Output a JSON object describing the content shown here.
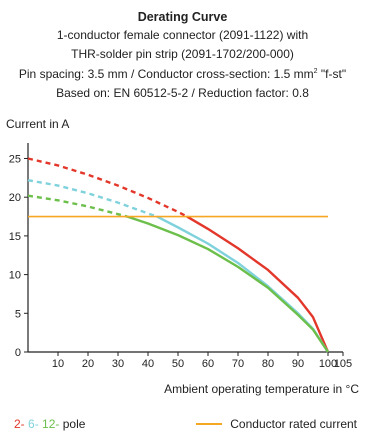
{
  "header": {
    "title": "Derating Curve",
    "line1": "1-conductor female connector (2091-1122) with",
    "line2": "THR-solder pin strip (2091-1702/200-000)",
    "line3_pre": "Pin spacing: 3.5 mm / Conductor cross-section: 1.5 mm",
    "line3_sup": "2",
    "line3_post": " \"f-st\"",
    "line4": "Based on: EN 60512-5-2 / Reduction factor: 0.8"
  },
  "colors": {
    "red": "#e2372a",
    "cyan": "#7fd2dc",
    "green": "#6cbf4a",
    "orange": "#f5a623",
    "axis": "#222222",
    "grid": "#dddddd"
  },
  "legend": {
    "pole_2": "2-",
    "pole_6": "6-",
    "pole_12": "12-",
    "pole_suffix": "pole",
    "rated_current": "Conductor rated current"
  },
  "chart_data": {
    "type": "line",
    "ylabel": "Current in A",
    "xlabel": "Ambient operating temperature in °C",
    "xlim": [
      0,
      105
    ],
    "ylim": [
      0,
      27
    ],
    "x_ticks": [
      10,
      20,
      30,
      40,
      50,
      60,
      70,
      80,
      90,
      100,
      105
    ],
    "y_ticks": [
      0,
      5,
      10,
      15,
      20,
      25
    ],
    "grid": false,
    "legend_position": "bottom",
    "series": [
      {
        "name": "2- pole",
        "color_key": "red",
        "x": [
          0,
          10,
          20,
          30,
          40,
          50,
          53,
          60,
          70,
          80,
          90,
          95,
          100
        ],
        "y": [
          25,
          24.1,
          22.9,
          21.5,
          19.9,
          18.1,
          17.5,
          15.9,
          13.4,
          10.6,
          7.0,
          4.5,
          0
        ],
        "dashed_until_x": 53
      },
      {
        "name": "6- pole",
        "color_key": "cyan",
        "x": [
          0,
          10,
          20,
          30,
          40,
          43,
          50,
          60,
          70,
          80,
          90,
          95,
          100
        ],
        "y": [
          22.2,
          21.5,
          20.5,
          19.3,
          17.9,
          17.5,
          16.1,
          14.0,
          11.5,
          8.5,
          5.0,
          3.0,
          0
        ],
        "dashed_until_x": 43
      },
      {
        "name": "12- pole",
        "color_key": "green",
        "x": [
          0,
          10,
          20,
          30,
          33,
          40,
          50,
          60,
          70,
          80,
          90,
          95,
          100
        ],
        "y": [
          20.2,
          19.6,
          18.8,
          17.8,
          17.5,
          16.6,
          15.1,
          13.3,
          11.0,
          8.3,
          4.8,
          2.9,
          0
        ],
        "dashed_until_x": 33
      },
      {
        "name": "Conductor rated current",
        "color_key": "orange",
        "x": [
          0,
          100
        ],
        "y": [
          17.5,
          17.5
        ]
      }
    ]
  }
}
